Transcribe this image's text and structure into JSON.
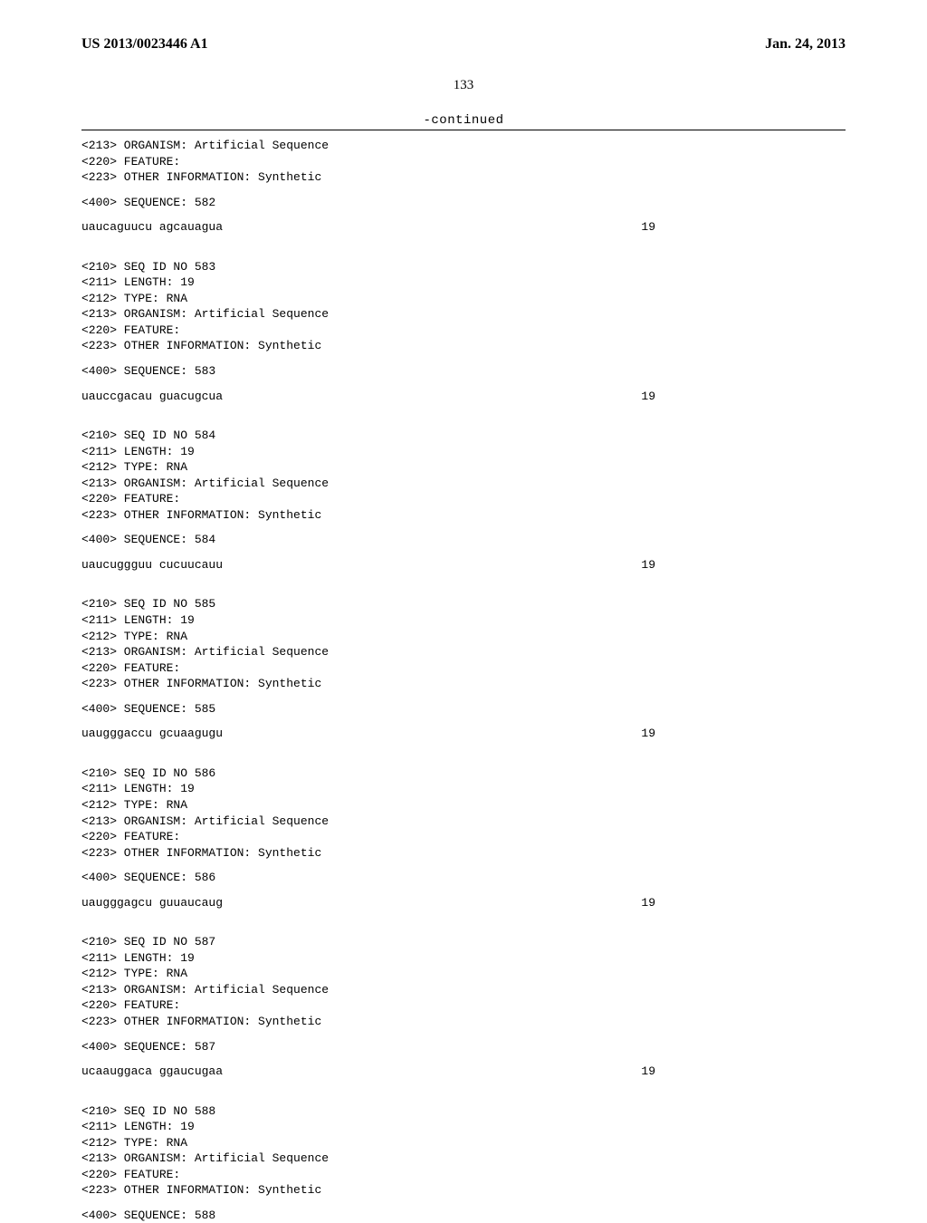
{
  "header": {
    "pub_number": "US 2013/0023446 A1",
    "pub_date": "Jan. 24, 2013"
  },
  "page_number": "133",
  "continued_label": "-continued",
  "meta_lines": {
    "organism": "<213> ORGANISM: Artificial Sequence",
    "feature": "<220> FEATURE:",
    "other_info": "<223> OTHER INFORMATION: Synthetic",
    "length": "<211> LENGTH: 19",
    "type": "<212> TYPE: RNA"
  },
  "entries": [
    {
      "prefix_lines": [
        "<213> ORGANISM: Artificial Sequence",
        "<220> FEATURE:",
        "<223> OTHER INFORMATION: Synthetic"
      ],
      "seq_label": "<400> SEQUENCE: 582",
      "sequence": "uaucaguucu agcauagua",
      "len": "19"
    },
    {
      "prefix_lines": [
        "<210> SEQ ID NO 583",
        "<211> LENGTH: 19",
        "<212> TYPE: RNA",
        "<213> ORGANISM: Artificial Sequence",
        "<220> FEATURE:",
        "<223> OTHER INFORMATION: Synthetic"
      ],
      "seq_label": "<400> SEQUENCE: 583",
      "sequence": "uauccgacau guacugcua",
      "len": "19"
    },
    {
      "prefix_lines": [
        "<210> SEQ ID NO 584",
        "<211> LENGTH: 19",
        "<212> TYPE: RNA",
        "<213> ORGANISM: Artificial Sequence",
        "<220> FEATURE:",
        "<223> OTHER INFORMATION: Synthetic"
      ],
      "seq_label": "<400> SEQUENCE: 584",
      "sequence": "uaucuggguu cucuucauu",
      "len": "19"
    },
    {
      "prefix_lines": [
        "<210> SEQ ID NO 585",
        "<211> LENGTH: 19",
        "<212> TYPE: RNA",
        "<213> ORGANISM: Artificial Sequence",
        "<220> FEATURE:",
        "<223> OTHER INFORMATION: Synthetic"
      ],
      "seq_label": "<400> SEQUENCE: 585",
      "sequence": "uaugggaccu gcuaagugu",
      "len": "19"
    },
    {
      "prefix_lines": [
        "<210> SEQ ID NO 586",
        "<211> LENGTH: 19",
        "<212> TYPE: RNA",
        "<213> ORGANISM: Artificial Sequence",
        "<220> FEATURE:",
        "<223> OTHER INFORMATION: Synthetic"
      ],
      "seq_label": "<400> SEQUENCE: 586",
      "sequence": "uaugggagcu guuaucaug",
      "len": "19"
    },
    {
      "prefix_lines": [
        "<210> SEQ ID NO 587",
        "<211> LENGTH: 19",
        "<212> TYPE: RNA",
        "<213> ORGANISM: Artificial Sequence",
        "<220> FEATURE:",
        "<223> OTHER INFORMATION: Synthetic"
      ],
      "seq_label": "<400> SEQUENCE: 587",
      "sequence": "ucaauggaca ggaucugaa",
      "len": "19"
    },
    {
      "prefix_lines": [
        "<210> SEQ ID NO 588",
        "<211> LENGTH: 19",
        "<212> TYPE: RNA",
        "<213> ORGANISM: Artificial Sequence",
        "<220> FEATURE:",
        "<223> OTHER INFORMATION: Synthetic"
      ],
      "seq_label": "<400> SEQUENCE: 588",
      "sequence": "",
      "len": ""
    }
  ]
}
